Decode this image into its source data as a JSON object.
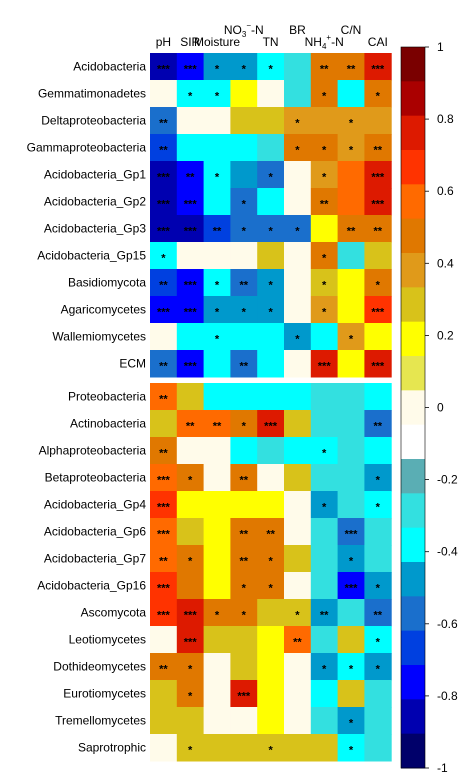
{
  "chart_data": {
    "type": "heatmap",
    "columns": [
      "pH",
      "SIR",
      "Moisture",
      "NO3−-N",
      "TN",
      "BR",
      "NH4+-N",
      "C/N",
      "CAI"
    ],
    "column_labels": [
      {
        "main": "pH"
      },
      {
        "main": "SIR"
      },
      {
        "main": "Moisture"
      },
      {
        "main": "NO",
        "sub": "3",
        "sup": "−",
        "tail": "-N"
      },
      {
        "main": "TN"
      },
      {
        "main": "BR"
      },
      {
        "main": "NH",
        "sub": "4",
        "sup": "+",
        "tail": "-N"
      },
      {
        "main": "C/N"
      },
      {
        "main": "CAI"
      }
    ],
    "rows": [
      "Acidobacteria",
      "Gemmatimonadetes",
      "Deltaproteobacteria",
      "Gammaproteobacteria",
      "Acidobacteria_Gp1",
      "Acidobacteria_Gp2",
      "Acidobacteria_Gp3",
      "Acidobacteria_Gp15",
      "Basidiomycota",
      "Agaricomycetes",
      "Wallemiomycetes",
      "ECM",
      "Proteobacteria",
      "Actinobacteria",
      "Alphaproteobacteria",
      "Betaproteobacteria",
      "Acidobacteria_Gp4",
      "Acidobacteria_Gp6",
      "Acidobacteria_Gp7",
      "Acidobacteria_Gp16",
      "Ascomycota",
      "Leotiomycetes",
      "Dothideomycetes",
      "Eurotiomycetes",
      "Tremellomycetes",
      "Saprotrophic"
    ],
    "values": [
      [
        -0.85,
        -0.8,
        -0.45,
        -0.45,
        -0.35,
        -0.25,
        0.5,
        0.45,
        0.8
      ],
      [
        0.0,
        -0.35,
        -0.35,
        0.2,
        0.0,
        -0.25,
        0.45,
        -0.35,
        0.45
      ],
      [
        -0.6,
        0.0,
        0.0,
        0.3,
        0.3,
        0.35,
        0.35,
        0.35,
        0.35
      ],
      [
        -0.7,
        -0.4,
        -0.4,
        -0.4,
        -0.3,
        0.45,
        0.5,
        0.35,
        0.5
      ],
      [
        -0.85,
        -0.75,
        -0.35,
        -0.45,
        -0.6,
        0.0,
        0.4,
        0.6,
        0.8
      ],
      [
        -0.85,
        -0.75,
        -0.4,
        -0.55,
        -0.4,
        0.0,
        0.5,
        0.6,
        0.8
      ],
      [
        -0.85,
        -0.85,
        -0.65,
        -0.55,
        -0.6,
        -0.6,
        0.2,
        0.5,
        0.45
      ],
      [
        -0.4,
        0.0,
        0.0,
        0.0,
        0.3,
        0.0,
        0.45,
        -0.25,
        0.3
      ],
      [
        -0.65,
        -0.75,
        -0.35,
        -0.55,
        -0.5,
        0.0,
        0.3,
        0.2,
        0.5
      ],
      [
        -0.75,
        -0.75,
        -0.45,
        -0.45,
        -0.45,
        0.0,
        0.4,
        0.2,
        0.7
      ],
      [
        0.0,
        -0.35,
        -0.35,
        -0.4,
        -0.35,
        -0.45,
        -0.35,
        0.4,
        0.2
      ],
      [
        -0.6,
        -0.75,
        -0.4,
        -0.55,
        -0.4,
        0.0,
        0.75,
        0.2,
        0.75
      ],
      [
        0.55,
        0.25,
        -0.35,
        -0.35,
        -0.35,
        -0.35,
        -0.3,
        -0.25,
        -0.35
      ],
      [
        0.25,
        0.55,
        0.55,
        0.45,
        0.8,
        0.25,
        -0.3,
        -0.3,
        -0.6
      ],
      [
        0.45,
        0.0,
        0.0,
        -0.35,
        -0.3,
        -0.35,
        -0.4,
        -0.3,
        -0.35
      ],
      [
        0.6,
        0.5,
        0.0,
        0.45,
        0.0,
        0.25,
        -0.3,
        -0.3,
        -0.45
      ],
      [
        0.65,
        0.2,
        0.2,
        0.2,
        0.2,
        0.0,
        -0.45,
        -0.3,
        -0.35
      ],
      [
        0.6,
        0.25,
        0.2,
        0.5,
        0.5,
        0.0,
        -0.3,
        -0.6,
        -0.3
      ],
      [
        0.55,
        0.45,
        0.2,
        0.45,
        0.45,
        0.25,
        -0.3,
        -0.45,
        -0.3
      ],
      [
        0.7,
        0.5,
        0.2,
        0.5,
        0.45,
        0.0,
        -0.3,
        -0.75,
        -0.45
      ],
      [
        0.7,
        0.8,
        0.45,
        0.45,
        0.25,
        0.3,
        -0.5,
        -0.3,
        -0.55
      ],
      [
        0.0,
        0.8,
        0.25,
        0.25,
        0.2,
        0.55,
        -0.3,
        0.25,
        -0.35
      ],
      [
        0.45,
        0.45,
        0.0,
        0.25,
        0.2,
        0.0,
        -0.45,
        -0.35,
        -0.45
      ],
      [
        0.25,
        0.45,
        0.0,
        0.8,
        0.2,
        0.0,
        -0.35,
        0.25,
        -0.3
      ],
      [
        0.25,
        0.25,
        0.0,
        0.0,
        0.2,
        0.0,
        -0.3,
        -0.5,
        -0.3
      ],
      [
        0.0,
        0.25,
        0.25,
        0.25,
        0.3,
        0.25,
        0.25,
        -0.35,
        -0.3
      ]
    ],
    "significance": [
      [
        "***",
        "***",
        "*",
        "*",
        "*",
        "",
        "**",
        "**",
        "***"
      ],
      [
        "",
        "*",
        "*",
        "",
        "",
        "",
        "*",
        "",
        "*"
      ],
      [
        "**",
        "",
        "",
        "",
        "",
        "*",
        "",
        "*",
        ""
      ],
      [
        "**",
        "",
        "",
        "",
        "",
        "*",
        "*",
        "*",
        "**"
      ],
      [
        "***",
        "**",
        "*",
        "",
        "*",
        "",
        "*",
        "",
        "***"
      ],
      [
        "***",
        "***",
        "",
        "*",
        "",
        "",
        "**",
        "",
        "***"
      ],
      [
        "***",
        "***",
        "**",
        "*",
        "*",
        "*",
        "",
        "**",
        "**"
      ],
      [
        "*",
        "",
        "",
        "",
        "",
        "",
        "*",
        "",
        ""
      ],
      [
        "**",
        "***",
        "*",
        "**",
        "*",
        "",
        "*",
        "",
        "*"
      ],
      [
        "***",
        "***",
        "*",
        "*",
        "*",
        "",
        "*",
        "",
        "***"
      ],
      [
        "",
        "",
        "*",
        "",
        "",
        "*",
        "",
        "*",
        ""
      ],
      [
        "**",
        "***",
        "",
        "**",
        "",
        "",
        "***",
        "",
        "***"
      ],
      [
        "**",
        "",
        "",
        "",
        "",
        "",
        "",
        "",
        ""
      ],
      [
        "",
        "**",
        "**",
        "*",
        "***",
        "",
        "",
        "",
        "**"
      ],
      [
        "**",
        "",
        "",
        "",
        "",
        "",
        "*",
        "",
        ""
      ],
      [
        "***",
        "*",
        "",
        "**",
        "",
        "",
        "",
        "",
        "*"
      ],
      [
        "***",
        "",
        "",
        "",
        "",
        "",
        "*",
        "",
        "*"
      ],
      [
        "***",
        "",
        "",
        "**",
        "**",
        "",
        "",
        "***",
        ""
      ],
      [
        "**",
        "*",
        "",
        "**",
        "*",
        "",
        "",
        "*",
        ""
      ],
      [
        "***",
        "",
        "",
        "*",
        "*",
        "",
        "",
        "***",
        "*"
      ],
      [
        "***",
        "***",
        "*",
        "*",
        "",
        "*",
        "**",
        "",
        "**"
      ],
      [
        "",
        "***",
        "",
        "",
        "",
        "**",
        "",
        "",
        "*"
      ],
      [
        "**",
        "*",
        "",
        "",
        "",
        "",
        "*",
        "*",
        "*"
      ],
      [
        "",
        "*",
        "",
        "***",
        "",
        "",
        "",
        "",
        ""
      ],
      [
        "",
        "",
        "",
        "",
        "",
        "",
        "",
        "*",
        ""
      ],
      [
        "",
        "*",
        "",
        "",
        "*",
        "",
        "",
        "*",
        ""
      ]
    ],
    "colorbar": {
      "range": [
        -1,
        1
      ],
      "ticks": [
        1,
        0.8,
        0.6,
        0.4,
        0.2,
        0,
        -0.2,
        -0.4,
        -0.6,
        -0.8,
        -1
      ],
      "tick_labels": [
        "1",
        "0.8",
        "0.6",
        "0.4",
        "0.2",
        "0",
        "-0.2",
        "-0.4",
        "-0.6",
        "-0.8",
        "-1"
      ],
      "colors_top_to_bottom": [
        "#7a0000",
        "#aa0000",
        "#dd1a00",
        "#ff3300",
        "#ff6a00",
        "#e07800",
        "#e09a1a",
        "#d8c21a",
        "#ffff00",
        "#e6e650",
        "#fffbea",
        "#ffffff",
        "#5aaeb4",
        "#33e0e0",
        "#00ffff",
        "#0099cc",
        "#1a6fcc",
        "#0040e0",
        "#0000ff",
        "#0000b0",
        "#00006a"
      ]
    },
    "group_gap_after_row": "ECM"
  }
}
